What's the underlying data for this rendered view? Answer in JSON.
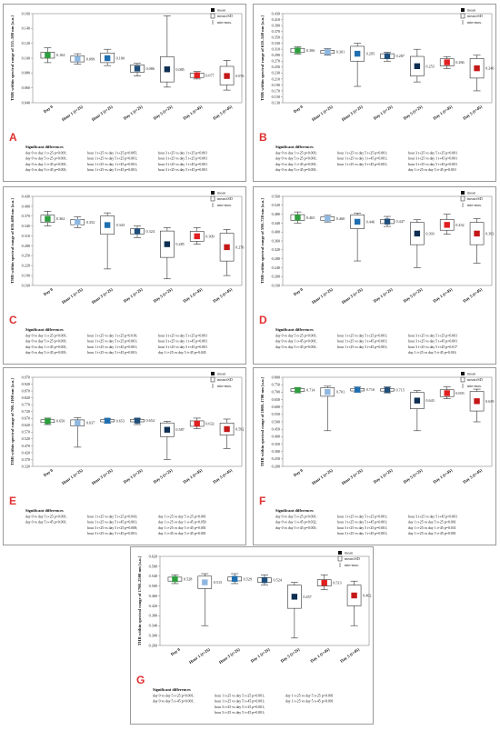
{
  "legend": {
    "mean": "mean",
    "sd": "mean±SD",
    "minmax": "min-max."
  },
  "sig_heading": "Significant differences",
  "colors": [
    "#2e9e3e",
    "#8fb8e0",
    "#1f6fb0",
    "#1f4f7a",
    "#0e2f52",
    "#e02020",
    "#c41818"
  ],
  "chart_data": [
    {
      "type": "box",
      "letter": "A",
      "ylabel": "THR within spectral range of 535–580 nm [a.u.]",
      "yticks": [
        "0.040",
        "0.060",
        "0.080",
        "0.100",
        "0.120",
        "0.140",
        "0.160"
      ],
      "ylim": [
        0.04,
        0.16
      ],
      "categories": [
        "Day 0",
        "Hour 1 (t+25)",
        "Hour 3 (t+25)",
        "Day 1 (t+25)",
        "Day 5 (t+25)",
        "Day 1 (t+45)",
        "Day 5 (t+45)"
      ],
      "values": [
        {
          "label": "0.104",
          "mean": 0.104,
          "sdLow": 0.1,
          "sdHigh": 0.108,
          "min": 0.094,
          "max": 0.114
        },
        {
          "label": "0.099",
          "mean": 0.099,
          "sdLow": 0.095,
          "sdHigh": 0.103,
          "min": 0.092,
          "max": 0.106
        },
        {
          "label": "0.100",
          "mean": 0.1,
          "sdLow": 0.094,
          "sdHigh": 0.107,
          "min": 0.09,
          "max": 0.112
        },
        {
          "label": "0.086",
          "mean": 0.086,
          "sdLow": 0.081,
          "sdHigh": 0.091,
          "min": 0.076,
          "max": 0.093
        },
        {
          "label": "0.085",
          "mean": 0.085,
          "sdLow": 0.068,
          "sdHigh": 0.102,
          "min": 0.061,
          "max": 0.157
        },
        {
          "label": "0.077",
          "mean": 0.077,
          "sdLow": 0.074,
          "sdHigh": 0.08,
          "min": 0.072,
          "max": 0.082
        },
        {
          "label": "0.076",
          "mean": 0.076,
          "sdLow": 0.064,
          "sdHigh": 0.089,
          "min": 0.057,
          "max": 0.097
        }
      ],
      "sig": [
        [
          "day 0 vs day 1 t+25 p=0.001;",
          "hour 1 t+25 vs day 1 t+25 p=0.005;",
          "hour 3 t+25 vs day 1 t+25 p=0.001"
        ],
        [
          "day 0 vs day 5 t+25 p=0.001;",
          "hour 1 t+25 vs day 5 t+25 p=0.001;",
          "hour 3 t+25 vs day 5 t+25 p=0.001"
        ],
        [
          "day 0 vs day 1 t+45 p=0.001;",
          "hour 1 t+25 vs day 1 t+45 p=0.001;",
          "hour 3 t+25 vs day 1 t+45 p=0.001"
        ],
        [
          "day 0 vs day 5 t+45 p=0.001;",
          "hour 1 t+25 vs day 5 t+45 p=0.001;",
          "hour 3 t+25 vs day 5 t+45 p=0.001"
        ]
      ]
    },
    {
      "type": "box",
      "letter": "B",
      "ylabel": "THR within spectral range of 610–540 nm [a.u.]",
      "yticks": [
        "0.130",
        "0.150",
        "0.170",
        "0.190",
        "0.210",
        "0.230",
        "0.250",
        "0.270",
        "0.290",
        "0.310",
        "0.330",
        "0.350",
        "0.370",
        "0.390",
        "0.410",
        "0.430"
      ],
      "ylim": [
        0.13,
        0.43
      ],
      "categories": [
        "Day 0",
        "Hour 1 (t+25)",
        "Hour 3 (t+25)",
        "Day 1 (t+25)",
        "Day 5 (t+25)",
        "Day 1 (t+45)",
        "Day 5 (t+45)"
      ],
      "values": [
        {
          "label": "0.306",
          "mean": 0.306,
          "sdLow": 0.299,
          "sdHigh": 0.313,
          "min": 0.294,
          "max": 0.318
        },
        {
          "label": "0.301",
          "mean": 0.301,
          "sdLow": 0.296,
          "sdHigh": 0.306,
          "min": 0.29,
          "max": 0.312
        },
        {
          "label": "0.295",
          "mean": 0.295,
          "sdLow": 0.27,
          "sdHigh": 0.32,
          "min": 0.185,
          "max": 0.33
        },
        {
          "label": "0.287",
          "mean": 0.287,
          "sdLow": 0.279,
          "sdHigh": 0.295,
          "min": 0.27,
          "max": 0.3
        },
        {
          "label": "0.253",
          "mean": 0.253,
          "sdLow": 0.22,
          "sdHigh": 0.286,
          "min": 0.2,
          "max": 0.31
        },
        {
          "label": "0.266",
          "mean": 0.266,
          "sdLow": 0.254,
          "sdHigh": 0.278,
          "min": 0.245,
          "max": 0.285
        },
        {
          "label": "0.246",
          "mean": 0.246,
          "sdLow": 0.213,
          "sdHigh": 0.279,
          "min": 0.17,
          "max": 0.29
        }
      ],
      "sig": [
        [
          "day 0 vs day 1 t+25 p=0.003;",
          "hour 1 t+25 vs day 5 t+25 p=0.001;",
          "hour 3 t+25 vs day 5 t+25 p=0.001"
        ],
        [
          "day 0 vs day 5 t+25 p=0.001;",
          "hour 1 t+25 vs day 1 t+45 p=0.001;",
          "hour 3 t+25 vs day 1 t+45 p=0.001"
        ],
        [
          "day 0 vs day 1 t+45 p=0.001;",
          "hour 1 t+25 vs day 5 t+45 p=0.001;",
          "hour 3 t+25 vs day 5 t+45 p=0.001"
        ],
        [
          "day 0 vs day 5 t+45 p=0.001;",
          "",
          "day 1 t+25 vs day 5 t+45 p=0.010"
        ]
      ]
    },
    {
      "type": "box",
      "letter": "C",
      "ylabel": "THR within spectral range of 630–680 nm [a.u.]",
      "yticks": [
        "0.160",
        "0.190",
        "0.220",
        "0.250",
        "0.280",
        "0.310",
        "0.340",
        "0.370",
        "0.400",
        "0.430"
      ],
      "ylim": [
        0.16,
        0.43
      ],
      "categories": [
        "Day 0",
        "Hour 1 (t+25)",
        "Hour 3 (t+25)",
        "Day 1 (t+25)",
        "Day 5 (t+25)",
        "Day 1 (t+45)",
        "Day 5 (t+45)"
      ],
      "values": [
        {
          "label": "0.362",
          "mean": 0.362,
          "sdLow": 0.351,
          "sdHigh": 0.373,
          "min": 0.34,
          "max": 0.385
        },
        {
          "label": "0.352",
          "mean": 0.352,
          "sdLow": 0.344,
          "sdHigh": 0.36,
          "min": 0.335,
          "max": 0.368
        },
        {
          "label": "0.343",
          "mean": 0.343,
          "sdLow": 0.315,
          "sdHigh": 0.371,
          "min": 0.21,
          "max": 0.38
        },
        {
          "label": "0.324",
          "mean": 0.324,
          "sdLow": 0.316,
          "sdHigh": 0.332,
          "min": 0.305,
          "max": 0.34
        },
        {
          "label": "0.285",
          "mean": 0.285,
          "sdLow": 0.245,
          "sdHigh": 0.325,
          "min": 0.18,
          "max": 0.335
        },
        {
          "label": "0.309",
          "mean": 0.309,
          "sdLow": 0.294,
          "sdHigh": 0.324,
          "min": 0.285,
          "max": 0.335
        },
        {
          "label": "0.276",
          "mean": 0.276,
          "sdLow": 0.234,
          "sdHigh": 0.318,
          "min": 0.19,
          "max": 0.33
        }
      ],
      "sig": [
        [
          "day 0 vs day 1 t+25 p=0.001;",
          "hour 1 t+25 vs day 1 t+25 p=0.010;",
          "hour 3 t+25 vs day 5 t+25 p=0.001"
        ],
        [
          "day 0 vs day 5 t+25 p=0.001;",
          "hour 1 t+25 vs day 5 t+25 p=0.001;",
          "hour 3 t+25 vs day 1 t+45 p=0.001"
        ],
        [
          "day 0 vs day 1 t+45 p=0.001;",
          "hour 1 t+25 vs day 1 t+45 p=0.001;",
          "hour 3 t+25 vs day 5 t+45 p=0.001"
        ],
        [
          "day 0 vs day 5 t+45 p=0.001;",
          "hour 1 t+25 vs day 5 t+45 p=0.001;",
          "day 1 t+25 vs day 5 t+45 p=0.045"
        ]
      ]
    },
    {
      "type": "box",
      "letter": "D",
      "ylabel": "THR within spectral range of 590–720 nm [a.u.]",
      "yticks": [
        "0.160",
        "0.200",
        "0.240",
        "0.280",
        "0.320",
        "0.360",
        "0.400",
        "0.440",
        "0.480",
        "0.520",
        "0.560"
      ],
      "ylim": [
        0.16,
        0.56
      ],
      "categories": [
        "Day 0",
        "Hour 1 (t+25)",
        "Hour 3 (t+25)",
        "Day 1 (t+25)",
        "Day 5 (t+25)",
        "Day 1 (t+45)",
        "Day 5 (t+45)"
      ],
      "values": [
        {
          "label": "0.465",
          "mean": 0.465,
          "sdLow": 0.452,
          "sdHigh": 0.478,
          "min": 0.44,
          "max": 0.49
        },
        {
          "label": "0.460",
          "mean": 0.46,
          "sdLow": 0.452,
          "sdHigh": 0.468,
          "min": 0.445,
          "max": 0.475
        },
        {
          "label": "0.446",
          "mean": 0.446,
          "sdLow": 0.415,
          "sdHigh": 0.477,
          "min": 0.27,
          "max": 0.485
        },
        {
          "label": "0.447",
          "mean": 0.447,
          "sdLow": 0.438,
          "sdHigh": 0.456,
          "min": 0.425,
          "max": 0.47
        },
        {
          "label": "0.393",
          "mean": 0.393,
          "sdLow": 0.343,
          "sdHigh": 0.443,
          "min": 0.24,
          "max": 0.455
        },
        {
          "label": "0.432",
          "mean": 0.432,
          "sdLow": 0.408,
          "sdHigh": 0.456,
          "min": 0.39,
          "max": 0.48
        },
        {
          "label": "0.393",
          "mean": 0.393,
          "sdLow": 0.343,
          "sdHigh": 0.443,
          "min": 0.26,
          "max": 0.46
        }
      ],
      "sig": [
        [
          "day 0 vs day 5 t+25 p=0.001;",
          "hour 1 t+25 vs day 5 t+25 p=0.001;",
          "hour 3 t+25 vs day 5 t+25 p=0.001"
        ],
        [
          "day 0 vs day 1 t+45 p=0.001;",
          "hour 1 t+25 vs day 1 t+45 p=0.001;",
          "hour 3 t+25 vs day 5 t+45 p=0.001"
        ],
        [
          "day 0 vs day 5 t+45 p=0.001;",
          "hour 1 t+25 vs day 5 t+45 p=0.001;",
          "hour 3 t+25 vs day 5 t+45 p=0.017"
        ],
        [
          "",
          "",
          "day 1 t+25 vs day 5 t+45 p=0.016"
        ]
      ]
    },
    {
      "type": "box",
      "letter": "E",
      "ylabel": "THR within spectral range of 700–1100 nm [a.u.]",
      "yticks": [
        "0.320",
        "0.370",
        "0.420",
        "0.470",
        "0.520",
        "0.570",
        "0.620",
        "0.670",
        "0.720",
        "0.770",
        "0.820",
        "0.870",
        "0.920",
        "0.970"
      ],
      "ylim": [
        0.32,
        0.97
      ],
      "categories": [
        "Day 0",
        "Hour 1 (t+25)",
        "Hour 3 (t+25)",
        "Day 1 (t+25)",
        "Day 5 (t+25)",
        "Day 1 (t+45)",
        "Day 5 (t+45)"
      ],
      "values": [
        {
          "label": "0.650",
          "mean": 0.65,
          "sdLow": 0.64,
          "sdHigh": 0.66,
          "min": 0.625,
          "max": 0.672
        },
        {
          "label": "0.637",
          "mean": 0.637,
          "sdLow": 0.615,
          "sdHigh": 0.659,
          "min": 0.46,
          "max": 0.675
        },
        {
          "label": "0.653",
          "mean": 0.653,
          "sdLow": 0.645,
          "sdHigh": 0.661,
          "min": 0.635,
          "max": 0.67
        },
        {
          "label": "0.654",
          "mean": 0.654,
          "sdLow": 0.645,
          "sdHigh": 0.663,
          "min": 0.625,
          "max": 0.67
        },
        {
          "label": "0.587",
          "mean": 0.587,
          "sdLow": 0.537,
          "sdHigh": 0.637,
          "min": 0.37,
          "max": 0.648
        },
        {
          "label": "0.632",
          "mean": 0.632,
          "sdLow": 0.612,
          "sdHigh": 0.652,
          "min": 0.595,
          "max": 0.672
        },
        {
          "label": "0.592",
          "mean": 0.592,
          "sdLow": 0.548,
          "sdHigh": 0.636,
          "min": 0.45,
          "max": 0.665
        }
      ],
      "sig": [
        [
          "day 0 vs day 5 t+25 p=0.001;",
          "hour 1 t+25 vs day 5 t+25 p=0.043;",
          "day 1 t+25 vs day 5 t+25 p=0.001"
        ],
        [
          "day 0 vs day 5 t+45 p=0.001;",
          "hour 1 t+25 vs day 5 t+45 p=0.001;",
          "day 1 t+25 vs day 1 t+45 p=0.050"
        ],
        [
          "",
          "hour 3 t+25 vs day 5 t+25 p=0.008;",
          "day 1 t+25 vs day 5 t+45 p=0.001"
        ],
        [
          "",
          "hour 3 t+25 vs day 5 t+45 p=0.001;",
          "day 1 t+45 vs day 5 t+45 p=0.001"
        ]
      ]
    },
    {
      "type": "box",
      "letter": "F",
      "ylabel": "THR within spectral range of 1000–1700 nm [a.u.]",
      "yticks": [
        "0.200",
        "0.250",
        "0.300",
        "0.350",
        "0.400",
        "0.450",
        "0.500",
        "0.550",
        "0.600",
        "0.650",
        "0.700",
        "0.750",
        "0.800"
      ],
      "ylim": [
        0.2,
        0.8
      ],
      "categories": [
        "Day 0",
        "Hour 1 (t+25)",
        "Hour 3 (t+25)",
        "Day 1 (t+25)",
        "Day 5 (t+25)",
        "Day 1 (t+45)",
        "Day 5 (t+45)"
      ],
      "values": [
        {
          "label": "0.714",
          "mean": 0.714,
          "sdLow": 0.705,
          "sdHigh": 0.723,
          "min": 0.695,
          "max": 0.73
        },
        {
          "label": "0.701",
          "mean": 0.701,
          "sdLow": 0.672,
          "sdHigh": 0.73,
          "min": 0.44,
          "max": 0.74
        },
        {
          "label": "0.716",
          "mean": 0.716,
          "sdLow": 0.708,
          "sdHigh": 0.724,
          "min": 0.7,
          "max": 0.735
        },
        {
          "label": "0.715",
          "mean": 0.715,
          "sdLow": 0.707,
          "sdHigh": 0.723,
          "min": 0.695,
          "max": 0.735
        },
        {
          "label": "0.643",
          "mean": 0.643,
          "sdLow": 0.588,
          "sdHigh": 0.698,
          "min": 0.44,
          "max": 0.71
        },
        {
          "label": "0.693",
          "mean": 0.693,
          "sdLow": 0.67,
          "sdHigh": 0.716,
          "min": 0.655,
          "max": 0.735
        },
        {
          "label": "0.639",
          "mean": 0.639,
          "sdLow": 0.573,
          "sdHigh": 0.705,
          "min": 0.5,
          "max": 0.72
        }
      ],
      "sig": [
        [
          "day 0 vs day 5 t+25 p=0.001;",
          "hour 1 t+25 vs day 5 t+25 p=0.001;",
          "hour 3 t+25 vs day 5 t+45 p=0.001"
        ],
        [
          "day 0 vs day 1 t+45 p=0.032;",
          "hour 1 t+25 vs day 5 t+45 p=0.001;",
          "day 1 t+25 vs day 5 t+25 p=0.001"
        ],
        [
          "day 0 vs day 5 t+45 p=0.001;",
          "hour 3 t+25 vs day 5 t+25 p=0.001;",
          "day 1 t+25 vs day 1 t+45 p=0.031"
        ],
        [
          "",
          "hour 3 t+25 vs day 1 t+45 p=0.001;",
          "day 1 t+25 vs day 5 t+45 p=0.001"
        ]
      ]
    },
    {
      "type": "box",
      "letter": "G",
      "ylabel": "THR within spectral range of 1700–2500 nm [a.u.]",
      "yticks": [
        "0.260",
        "0.300",
        "0.340",
        "0.380",
        "0.420",
        "0.460",
        "0.500",
        "0.540",
        "0.580",
        "0.620"
      ],
      "ylim": [
        0.26,
        0.62
      ],
      "categories": [
        "Day 0",
        "Hour 1 (t+25)",
        "Hour 3 (t+25)",
        "Day 1 (t+25)",
        "Day 5 (t+25)",
        "Day 1 (t+45)",
        "Day 5 (t+45)"
      ],
      "values": [
        {
          "label": "0.528",
          "mean": 0.528,
          "sdLow": 0.52,
          "sdHigh": 0.536,
          "min": 0.51,
          "max": 0.545
        },
        {
          "label": "0.515",
          "mean": 0.515,
          "sdLow": 0.49,
          "sdHigh": 0.54,
          "min": 0.34,
          "max": 0.55
        },
        {
          "label": "0.529",
          "mean": 0.529,
          "sdLow": 0.521,
          "sdHigh": 0.537,
          "min": 0.51,
          "max": 0.55
        },
        {
          "label": "0.524",
          "mean": 0.524,
          "sdLow": 0.515,
          "sdHigh": 0.533,
          "min": 0.505,
          "max": 0.545
        },
        {
          "label": "0.457",
          "mean": 0.457,
          "sdLow": 0.41,
          "sdHigh": 0.504,
          "min": 0.29,
          "max": 0.515
        },
        {
          "label": "0.513",
          "mean": 0.513,
          "sdLow": 0.5,
          "sdHigh": 0.526,
          "min": 0.485,
          "max": 0.545
        },
        {
          "label": "0.462",
          "mean": 0.462,
          "sdLow": 0.42,
          "sdHigh": 0.504,
          "min": 0.34,
          "max": 0.52
        }
      ],
      "sig": [
        [
          "day 0 vs day 5 t+25 p=0.001;",
          "hour 1 t+25 vs day 5 t+25 p=0.001;",
          "day 1 t+25 vs day 5 t+25 p=0.001"
        ],
        [
          "day 0 vs day 5 t+45 p=0.001;",
          "hour 1 t+25 vs day 5 t+45 p=0.001;",
          "day 1 t+25 vs day 5 t+45 p=0.001"
        ],
        [
          "",
          "hour 3 t+25 vs day 5 t+25 p=0.001;",
          ""
        ],
        [
          "",
          "hour 3 t+25 vs day 5 t+45 p=0.001;",
          ""
        ]
      ]
    }
  ]
}
